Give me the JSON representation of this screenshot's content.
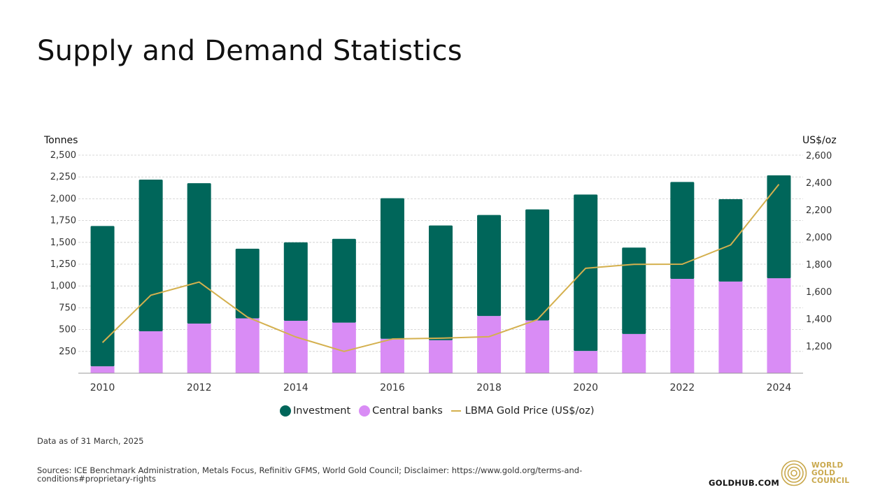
{
  "page": {
    "title": "Supply and Demand Statistics",
    "note": "Data as of 31 March, 2025",
    "sources": "Sources: ICE Benchmark Administration, Metals Focus, Refinitiv GFMS, World Gold Council; Disclaimer: https://www.gold.org/terms-and-conditions#proprietary-rights",
    "footer_link": "GOLDHUB.COM",
    "logo_lines": [
      "WORLD",
      "GOLD",
      "COUNCIL"
    ]
  },
  "colors": {
    "investment": "#00665a",
    "central_banks": "#d98cf5",
    "gold_price": "#d4b04e",
    "grid": "#cccccc",
    "axis": "#999999"
  },
  "chart_data": {
    "type": "bar",
    "stacked": true,
    "categories": [
      "2010",
      "2011",
      "2012",
      "2013",
      "2014",
      "2015",
      "2016",
      "2017",
      "2018",
      "2019",
      "2020",
      "2021",
      "2022",
      "2023",
      "2024"
    ],
    "x_tick_labels": [
      "2010",
      "2012",
      "2014",
      "2016",
      "2018",
      "2020",
      "2022",
      "2024"
    ],
    "series": [
      {
        "name": "Central banks",
        "axis": "left",
        "values": [
          79,
          481,
          569,
          629,
          601,
          580,
          395,
          379,
          656,
          605,
          255,
          450,
          1082,
          1051,
          1089
        ]
      },
      {
        "name": "Investment",
        "axis": "left",
        "values": [
          1609,
          1739,
          1609,
          798,
          899,
          960,
          1611,
          1315,
          1158,
          1273,
          1793,
          990,
          1111,
          944,
          1180
        ]
      },
      {
        "name": "LBMA Gold Price (US$/oz)",
        "axis": "right",
        "type": "line",
        "values": [
          1225,
          1572,
          1669,
          1411,
          1266,
          1160,
          1251,
          1257,
          1268,
          1393,
          1770,
          1799,
          1800,
          1941,
          2386
        ]
      }
    ],
    "ylabel_left": "Tonnes",
    "ylabel_right": "US$/oz",
    "ylim_left": [
      0,
      2500
    ],
    "yticks_left": [
      250,
      500,
      750,
      1000,
      1250,
      1500,
      1750,
      2000,
      2250,
      2500
    ],
    "ytick_labels_left": [
      "250",
      "500",
      "750",
      "1,000",
      "1,250",
      "1,500",
      "1,750",
      "2,000",
      "2,250",
      "2,500"
    ],
    "ylim_right": [
      1000,
      2600
    ],
    "yticks_right": [
      1200,
      1400,
      1600,
      1800,
      2000,
      2200,
      2400,
      2600
    ],
    "ytick_labels_right": [
      "1,200",
      "1,400",
      "1,600",
      "1,800",
      "2,000",
      "2,200",
      "2,400",
      "2,600"
    ],
    "legend": [
      "Investment",
      "Central banks",
      "LBMA Gold Price (US$/oz)"
    ],
    "legend_position": "bottom",
    "grid": true
  }
}
